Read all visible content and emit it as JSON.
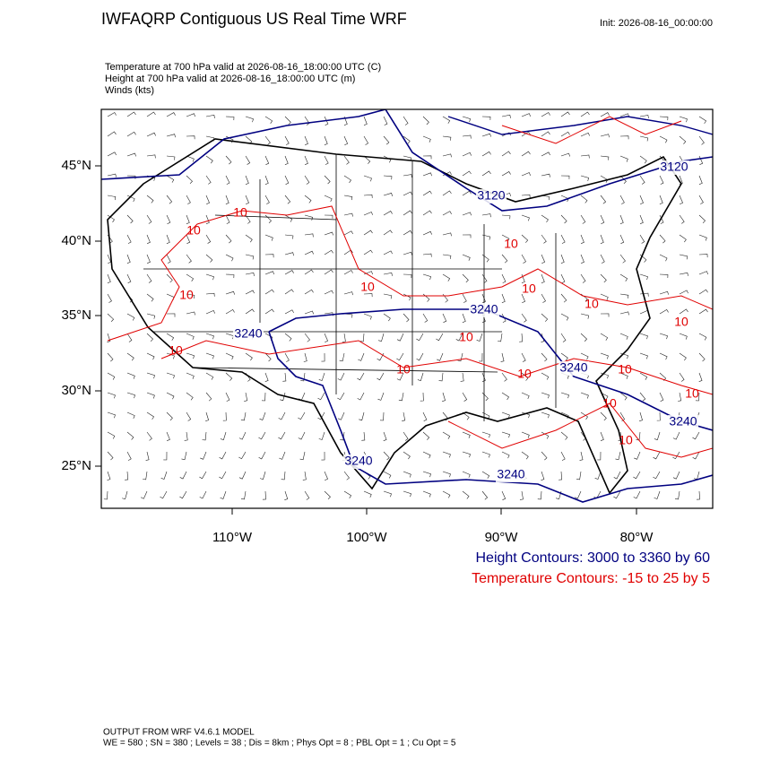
{
  "header": {
    "title": "IWFAQRP Contiguous US Real Time WRF",
    "init": "Init: 2026-08-16_00:00:00",
    "fields": [
      "Temperature at 700 hPa valid at 2026-08-16_18:00:00 UTC   (C)",
      "Height at 700 hPa valid at 2026-08-16_18:00:00 UTC   (m)",
      "Winds   (kts)"
    ]
  },
  "map": {
    "lat_labels": [
      "45°N",
      "40°N",
      "35°N",
      "30°N",
      "25°N"
    ],
    "lon_labels": [
      "110°W",
      "100°W",
      "90°W",
      "80°W"
    ],
    "height_contour_labels": [
      "3120",
      "3120",
      "3240",
      "3240",
      "3240",
      "3240",
      "3240",
      "3240"
    ],
    "temperature_contour_labels": [
      "10",
      "10",
      "10",
      "10",
      "10",
      "10",
      "10",
      "10",
      "10",
      "10",
      "10",
      "10",
      "10",
      "10",
      "10",
      "10"
    ]
  },
  "legend": [
    "Height Contours: 3000 to 3360 by 60",
    "Temperature Contours: -15 to 25 by 5"
  ],
  "footer": [
    "OUTPUT FROM WRF V4.6.1 MODEL",
    "WE = 580 ; SN = 380 ; Levels = 38 ; Dis = 8km ; Phys Opt = 8 ; PBL Opt = 1 ; Cu Opt = 5"
  ]
}
